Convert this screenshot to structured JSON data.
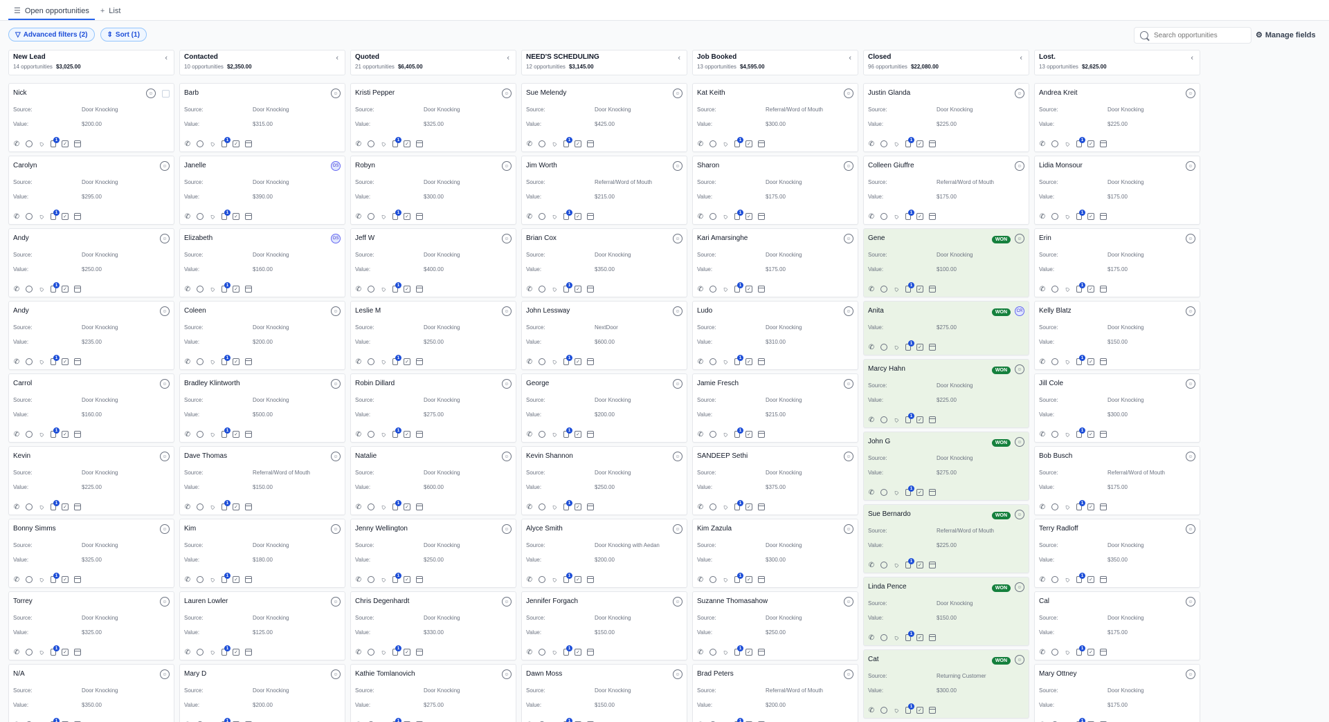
{
  "tabs": [
    {
      "label": "Open opportunities",
      "icon": "list-icon",
      "active": true
    },
    {
      "label": "List",
      "icon": "plus-icon",
      "active": false
    }
  ],
  "toolbar": {
    "filters_label": "Advanced filters (2)",
    "sort_label": "Sort (1)",
    "search_placeholder": "Search opportunities",
    "manage_fields_label": "Manage fields"
  },
  "columns": [
    {
      "title": "New Lead",
      "count": "14 opportunities",
      "amount": "$3,025.00",
      "cards": [
        {
          "name": "Nick",
          "source": "Door Knocking",
          "value": "$200.00",
          "checkbox": true
        },
        {
          "name": "Carolyn",
          "source": "Door Knocking",
          "value": "$295.00"
        },
        {
          "name": "Andy",
          "source": "Door Knocking",
          "value": "$250.00"
        },
        {
          "name": "Andy",
          "source": "Door Knocking",
          "value": "$235.00"
        },
        {
          "name": "Carrol",
          "source": "Door Knocking",
          "value": "$160.00"
        },
        {
          "name": "Kevin",
          "source": "Door Knocking",
          "value": "$225.00"
        },
        {
          "name": "Bonny Simms",
          "source": "Door Knocking",
          "value": "$325.00"
        },
        {
          "name": "Torrey",
          "source": "Door Knocking",
          "value": "$325.00"
        },
        {
          "name": "N/A",
          "source": "Door Knocking",
          "value": "$350.00"
        }
      ]
    },
    {
      "title": "Contacted",
      "count": "10 opportunities",
      "amount": "$2,350.00",
      "cards": [
        {
          "name": "Barb",
          "source": "Door Knocking",
          "value": "$315.00"
        },
        {
          "name": "Janelle",
          "source": "Door Knocking",
          "value": "$390.00",
          "initials": "OS"
        },
        {
          "name": "Elizabeth",
          "source": "Door Knocking",
          "value": "$160.00",
          "initials": "OS"
        },
        {
          "name": "Coleen",
          "source": "Door Knocking",
          "value": "$200.00"
        },
        {
          "name": "Bradley Klintworth",
          "source": "Door Knocking",
          "value": "$500.00"
        },
        {
          "name": "Dave Thomas",
          "source": "Referral/Word of Mouth",
          "value": "$150.00"
        },
        {
          "name": "Kim",
          "source": "Door Knocking",
          "value": "$180.00"
        },
        {
          "name": "Lauren Lowler",
          "source": "Door Knocking",
          "value": "$125.00"
        },
        {
          "name": "Mary D",
          "source": "Door Knocking",
          "value": "$200.00"
        }
      ]
    },
    {
      "title": "Quoted",
      "count": "21 opportunities",
      "amount": "$6,405.00",
      "cards": [
        {
          "name": "Kristi Pepper",
          "source": "Door Knocking",
          "value": "$325.00"
        },
        {
          "name": "Robyn",
          "source": "Door Knocking",
          "value": "$300.00"
        },
        {
          "name": "Jeff W",
          "source": "Door Knocking",
          "value": "$400.00"
        },
        {
          "name": "Leslie M",
          "source": "Door Knocking",
          "value": "$250.00"
        },
        {
          "name": "Robin Dillard",
          "source": "Door Knocking",
          "value": "$275.00"
        },
        {
          "name": "Natalie",
          "source": "Door Knocking",
          "value": "$600.00"
        },
        {
          "name": "Jenny Wellington",
          "source": "Door Knocking",
          "value": "$250.00"
        },
        {
          "name": "Chris Degenhardt",
          "source": "Door Knocking",
          "value": "$330.00"
        },
        {
          "name": "Kathie Tomlanovich",
          "source": "Door Knocking",
          "value": "$275.00"
        }
      ]
    },
    {
      "title": "NEED'S SCHEDULING",
      "count": "12 opportunities",
      "amount": "$3,145.00",
      "cards": [
        {
          "name": "Sue Melendy",
          "source": "Door Knocking",
          "value": "$425.00"
        },
        {
          "name": "Jim Worth",
          "source": "Referral/Word of Mouth",
          "value": "$215.00"
        },
        {
          "name": "Brian Cox",
          "source": "Door Knocking",
          "value": "$350.00"
        },
        {
          "name": "John Lessway",
          "source": "NextDoor",
          "value": "$600.00"
        },
        {
          "name": "George",
          "source": "Door Knocking",
          "value": "$200.00"
        },
        {
          "name": "Kevin Shannon",
          "source": "Door Knocking",
          "value": "$250.00"
        },
        {
          "name": "Alyce Smith",
          "source": "Door Knocking with Aedan",
          "value": "$200.00"
        },
        {
          "name": "Jennifer Forgach",
          "source": "Door Knocking",
          "value": "$150.00"
        },
        {
          "name": "Dawn Moss",
          "source": "Door Knocking",
          "value": "$150.00"
        }
      ]
    },
    {
      "title": "Job Booked",
      "count": "13 opportunities",
      "amount": "$4,595.00",
      "cards": [
        {
          "name": "Kat Keith",
          "source": "Referral/Word of Mouth",
          "value": "$300.00"
        },
        {
          "name": "Sharon",
          "source": "Door Knocking",
          "value": "$175.00"
        },
        {
          "name": "Kari Amarsinghe",
          "source": "Door Knocking",
          "value": "$175.00"
        },
        {
          "name": "Ludo",
          "source": "Door Knocking",
          "value": "$310.00"
        },
        {
          "name": "Jamie Fresch",
          "source": "Door Knocking",
          "value": "$215.00"
        },
        {
          "name": "SANDEEP Sethi",
          "source": "Door Knocking",
          "value": "$375.00"
        },
        {
          "name": "Kim Zazula",
          "source": "Door Knocking",
          "value": "$300.00"
        },
        {
          "name": "Suzanne Thomasahow",
          "source": "Door Knocking",
          "value": "$250.00"
        },
        {
          "name": "Brad Peters",
          "source": "Referral/Word of Mouth",
          "value": "$200.00"
        }
      ]
    },
    {
      "title": "Closed",
      "count": "96 opportunities",
      "amount": "$22,080.00",
      "cards": [
        {
          "name": "Justin Glanda",
          "source": "Door Knocking",
          "value": "$225.00"
        },
        {
          "name": "Colleen Giuffre",
          "source": "Referral/Word of Mouth",
          "value": "$175.00"
        },
        {
          "name": "Gene",
          "source": "Door Knocking",
          "value": "$100.00",
          "won": true
        },
        {
          "name": "Anita",
          "value": "$275.00",
          "won": true,
          "initials": "CR",
          "short": true
        },
        {
          "name": "Marcy Hahn",
          "source": "Door Knocking",
          "value": "$225.00",
          "won": true
        },
        {
          "name": "John G",
          "source": "Door Knocking",
          "value": "$275.00",
          "won": true
        },
        {
          "name": "Sue Bernardo",
          "source": "Referral/Word of Mouth",
          "value": "$225.00",
          "won": true
        },
        {
          "name": "Linda Pence",
          "source": "Door Knocking",
          "value": "$150.00",
          "won": true
        },
        {
          "name": "Cat",
          "source": "Returning Customer",
          "value": "$300.00",
          "won": true
        }
      ]
    },
    {
      "title": "Lost.",
      "count": "13 opportunities",
      "amount": "$2,625.00",
      "cards": [
        {
          "name": "Andrea Kreit",
          "source": "Door Knocking",
          "value": "$225.00"
        },
        {
          "name": "Lidia Monsour",
          "source": "Door Knocking",
          "value": "$175.00"
        },
        {
          "name": "Erin",
          "source": "Door Knocking",
          "value": "$175.00"
        },
        {
          "name": "Kelly Blatz",
          "source": "Door Knocking",
          "value": "$150.00"
        },
        {
          "name": "Jill Cole",
          "source": "Door Knocking",
          "value": "$300.00"
        },
        {
          "name": "Bob Busch",
          "source": "Referral/Word of Mouth",
          "value": "$175.00"
        },
        {
          "name": "Terry Radloff",
          "source": "Door Knocking",
          "value": "$350.00"
        },
        {
          "name": "Cal",
          "source": "Door Knocking",
          "value": "$175.00"
        },
        {
          "name": "Mary Ottney",
          "source": "Door Knocking",
          "value": "$175.00"
        }
      ]
    }
  ],
  "labels": {
    "source": "Source:",
    "value": "Value:",
    "won": "WON",
    "collapse_icon": "‹",
    "badge_count": "1"
  },
  "colors": {
    "accent": "#2563eb",
    "won_bg": "#eaf3e6",
    "won_badge": "#15803d"
  }
}
